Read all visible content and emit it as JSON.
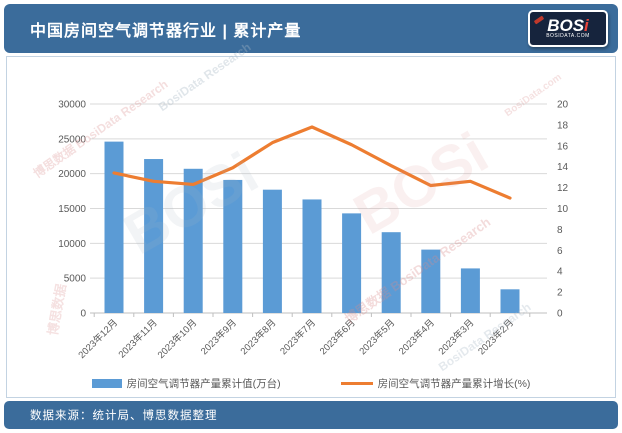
{
  "header": {
    "title": "中国房间空气调节器行业 | 累计产量",
    "logo": {
      "word": "BOS",
      "word_dot": "i",
      "sub": "BOSIDATA.COM"
    }
  },
  "footer": {
    "source": "数据来源：统计局、博思数据整理"
  },
  "watermark": {
    "cn": "博思数据",
    "en": "BosiData Research",
    "logo": "BOSi",
    "site": "BosiData.com"
  },
  "colors": {
    "header_bg": "#3b6c9b",
    "bar": "#5b9bd5",
    "line": "#ed7d31",
    "grid": "#d9d9d9",
    "axis_line": "#bfbfbf",
    "axis_text": "#595959",
    "watermark_red": "#d98c8c",
    "watermark_gray": "#a9b8c6"
  },
  "chart_data": {
    "type": "bar",
    "subtype": "bar+line combo, dual axis",
    "categories": [
      "2023年12月",
      "2023年11月",
      "2023年10月",
      "2023年9月",
      "2023年8月",
      "2023年7月",
      "2023年6月",
      "2023年5月",
      "2023年4月",
      "2023年3月",
      "2023年2月"
    ],
    "series": [
      {
        "name": "房间空气调节器产量累计值(万台)",
        "type": "bar",
        "axis": "left",
        "values": [
          24600,
          22100,
          20700,
          19100,
          17700,
          16300,
          14300,
          11600,
          9100,
          6400,
          3400
        ]
      },
      {
        "name": "房间空气调节器产量累计增长(%)",
        "type": "line",
        "axis": "right",
        "values": [
          13.4,
          12.6,
          12.3,
          13.9,
          16.3,
          17.8,
          16.1,
          14.1,
          12.2,
          12.6,
          11.0
        ]
      }
    ],
    "left_axis": {
      "min": 0,
      "max": 30000,
      "ticks": [
        0,
        5000,
        10000,
        15000,
        20000,
        25000,
        30000
      ]
    },
    "right_axis": {
      "min": 0,
      "max": 20,
      "ticks": [
        0,
        2,
        4,
        6,
        8,
        10,
        12,
        14,
        16,
        18,
        20
      ]
    },
    "grid": true,
    "legend_position": "bottom"
  }
}
